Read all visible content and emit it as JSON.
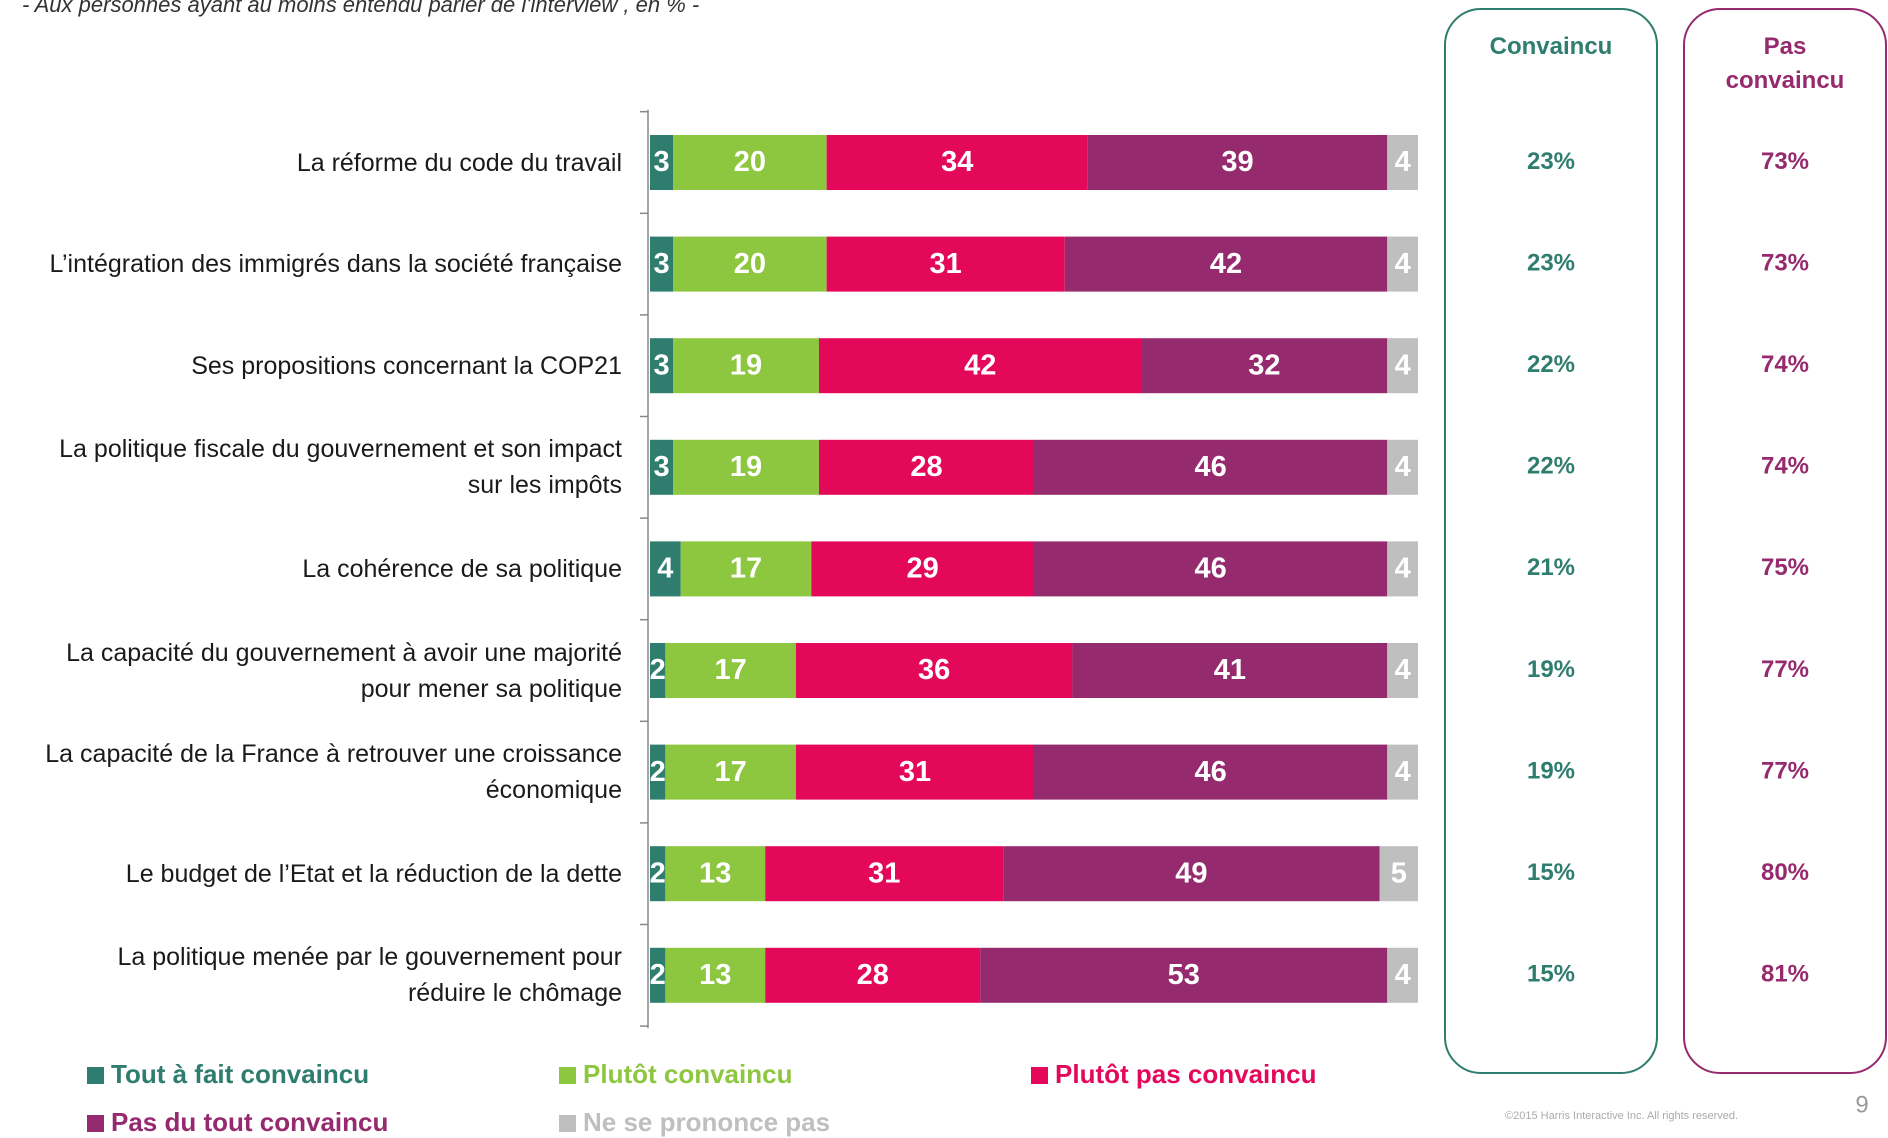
{
  "chart_data": {
    "type": "stacked-barh",
    "subtitle": "- Aux personnes ayant au moins entendu parler de l'interview , en % -",
    "categories": [
      "La réforme du code du travail",
      "L’intégration des immigrés dans la société française",
      "Ses propositions concernant la COP21",
      "La politique fiscale du gouvernement et son impact\nsur les impôts",
      "La cohérence de sa politique",
      "La capacité du gouvernement à avoir une majorité\npour mener sa politique",
      "La capacité de la France à retrouver une croissance\néconomique",
      "Le budget de l’Etat et la réduction de la dette",
      "La politique menée par le gouvernement pour\nréduire le chômage"
    ],
    "xlim": [
      0,
      100
    ],
    "series": [
      {
        "name": "Tout à fait convaincu",
        "color": "#2e7d6e",
        "values": [
          3,
          3,
          3,
          3,
          4,
          2,
          2,
          2,
          2
        ]
      },
      {
        "name": "Plutôt convaincu",
        "color": "#8dc63f",
        "values": [
          20,
          20,
          19,
          19,
          17,
          17,
          17,
          13,
          13
        ]
      },
      {
        "name": "Plutôt pas convaincu",
        "color": "#e3085a",
        "values": [
          34,
          31,
          42,
          28,
          29,
          36,
          31,
          31,
          28
        ]
      },
      {
        "name": "Pas du tout convaincu",
        "color": "#962a6e",
        "values": [
          39,
          42,
          32,
          46,
          46,
          41,
          46,
          49,
          53
        ]
      },
      {
        "name": "Ne se prononce pas",
        "color": "#bfbfbf",
        "values": [
          4,
          4,
          4,
          4,
          4,
          4,
          4,
          5,
          4
        ]
      }
    ],
    "summary_columns": [
      {
        "title": "Convaincu",
        "color": "#2e7d6e",
        "labels": [
          "23%",
          "23%",
          "22%",
          "22%",
          "21%",
          "19%",
          "19%",
          "15%",
          "15%"
        ]
      },
      {
        "title": "Pas\nconvaincu",
        "color": "#962a6e",
        "labels": [
          "73%",
          "73%",
          "74%",
          "74%",
          "75%",
          "77%",
          "77%",
          "80%",
          "81%"
        ]
      }
    ],
    "footer": "©2015 Harris Interactive Inc. All rights reserved.",
    "page_number": "9"
  }
}
